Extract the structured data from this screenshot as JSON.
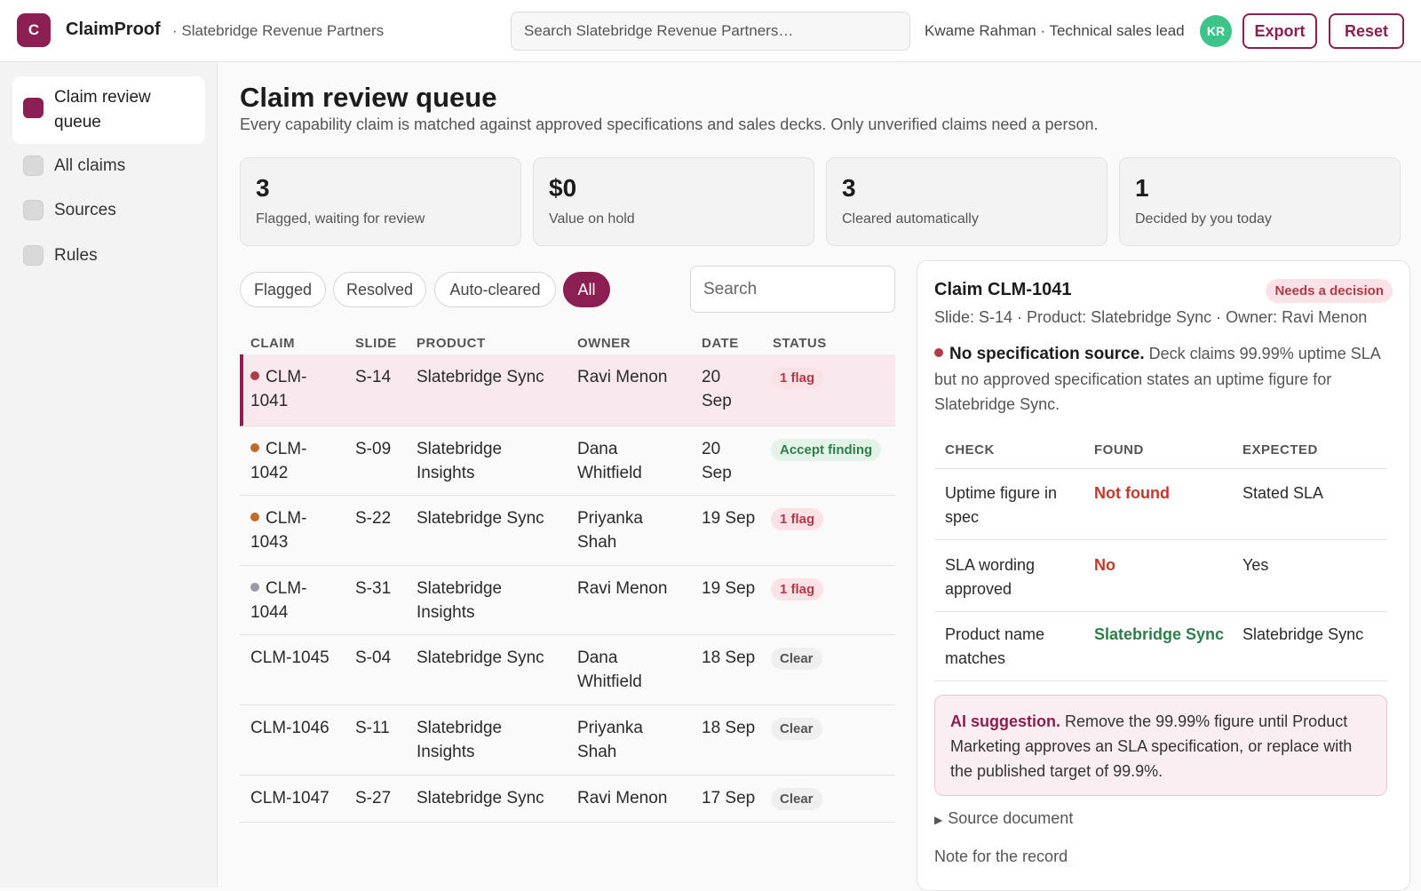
{
  "header": {
    "logo_letter": "C",
    "app_name": "ClaimProof",
    "org": "· Slatebridge Revenue Partners",
    "search_placeholder": "Search Slatebridge Revenue Partners…",
    "user": "Kwame Rahman · Technical sales lead",
    "avatar_initials": "KR",
    "export_label": "Export",
    "reset_label": "Reset"
  },
  "sidebar": {
    "items": [
      {
        "label": "Claim review queue",
        "active": true
      },
      {
        "label": "All claims",
        "active": false
      },
      {
        "label": "Sources",
        "active": false
      },
      {
        "label": "Rules",
        "active": false
      }
    ]
  },
  "main": {
    "title": "Claim review queue",
    "subtitle": "Every capability claim is matched against approved specifications and sales decks. Only unverified claims need a person."
  },
  "stats": [
    {
      "value": "3",
      "label": "Flagged, waiting for review"
    },
    {
      "value": "$0",
      "label": "Value on hold"
    },
    {
      "value": "3",
      "label": "Cleared automatically"
    },
    {
      "value": "1",
      "label": "Decided by you today"
    }
  ],
  "filters": [
    "Flagged",
    "Resolved",
    "Auto-cleared",
    "All"
  ],
  "active_filter": "All",
  "table_search_placeholder": "Search",
  "table": {
    "columns": [
      "CLAIM",
      "SLIDE",
      "PRODUCT",
      "OWNER",
      "DATE",
      "STATUS"
    ],
    "rows": [
      {
        "claim": "CLM-1041",
        "slide": "S-14",
        "product": "Slatebridge Sync",
        "owner": "Ravi Menon",
        "date": "20 Sep",
        "status": "1 flag",
        "status_kind": "flag",
        "dot": "#b23a48"
      },
      {
        "claim": "CLM-1042",
        "slide": "S-09",
        "product": "Slatebridge Insights",
        "owner": "Dana Whitfield",
        "date": "20 Sep",
        "status": "Accept finding",
        "status_kind": "accept",
        "dot": "#c26a2a"
      },
      {
        "claim": "CLM-1043",
        "slide": "S-22",
        "product": "Slatebridge Sync",
        "owner": "Priyanka Shah",
        "date": "19 Sep",
        "status": "1 flag",
        "status_kind": "flag",
        "dot": "#c26a2a"
      },
      {
        "claim": "CLM-1044",
        "slide": "S-31",
        "product": "Slatebridge Insights",
        "owner": "Ravi Menon",
        "date": "19 Sep",
        "status": "1 flag",
        "status_kind": "flag",
        "dot": "#9a9aa6"
      },
      {
        "claim": "CLM-1045",
        "slide": "S-04",
        "product": "Slatebridge Sync",
        "owner": "Dana Whitfield",
        "date": "18 Sep",
        "status": "Clear",
        "status_kind": "clear",
        "dot": ""
      },
      {
        "claim": "CLM-1046",
        "slide": "S-11",
        "product": "Slatebridge Insights",
        "owner": "Priyanka Shah",
        "date": "18 Sep",
        "status": "Clear",
        "status_kind": "clear",
        "dot": ""
      },
      {
        "claim": "CLM-1047",
        "slide": "S-27",
        "product": "Slatebridge Sync",
        "owner": "Ravi Menon",
        "date": "17 Sep",
        "status": "Clear",
        "status_kind": "clear",
        "dot": ""
      }
    ]
  },
  "detail": {
    "title": "Claim CLM-1041",
    "badge": "Needs a decision",
    "meta": "Slide: S-14 · Product: Slatebridge Sync · Owner: Ravi Menon",
    "finding_title": "No specification source.",
    "finding_text": "Deck claims 99.99% uptime SLA but no approved specification states an uptime figure for Slatebridge Sync.",
    "check_columns": [
      "CHECK",
      "FOUND",
      "EXPECTED"
    ],
    "checks": [
      {
        "check": "Uptime figure in spec",
        "found": "Not found",
        "found_kind": "red",
        "expected": "Stated SLA"
      },
      {
        "check": "SLA wording approved",
        "found": "No",
        "found_kind": "red",
        "expected": "Yes"
      },
      {
        "check": "Product name matches",
        "found": "Slatebridge Sync",
        "found_kind": "green",
        "expected": "Slatebridge Sync"
      }
    ],
    "ai_label": "AI suggestion.",
    "ai_text": "Remove the 99.99% figure until Product Marketing approves an SLA specification, or replace with the published target of 99.9%.",
    "source_label": "Source document",
    "note_label": "Note for the record"
  },
  "colors": {
    "accent": "#8c1f52",
    "flag": "#b23a48",
    "ok": "#2e7d4a",
    "avatar": "#3cc48a"
  }
}
